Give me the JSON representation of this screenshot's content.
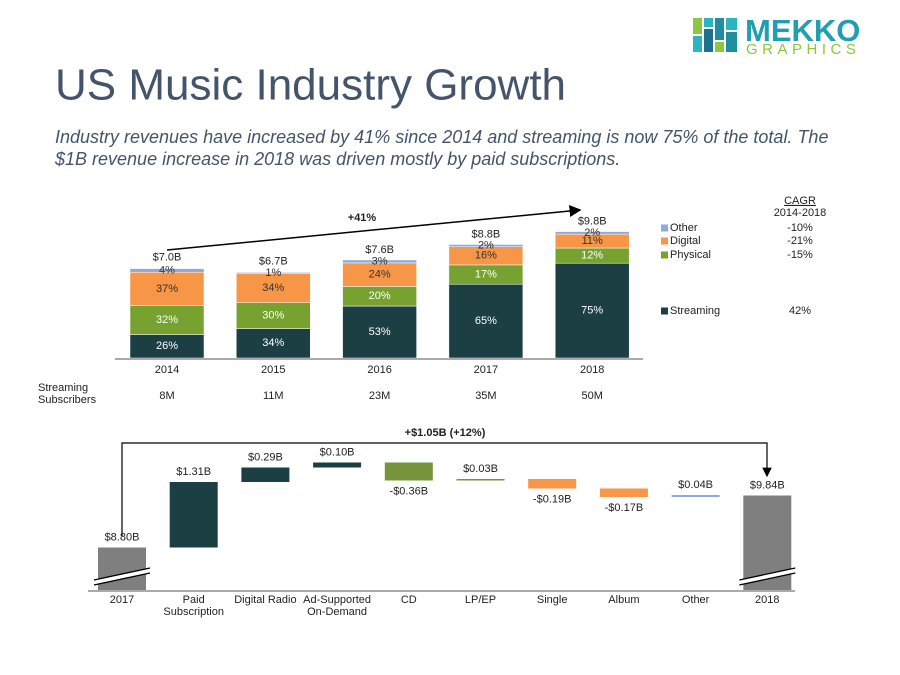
{
  "logo": {
    "brand": "MEKKO",
    "tagline": "GRAPHICS"
  },
  "title": "US Music Industry Growth",
  "subtitle": "Industry revenues have increased by 41% since 2014 and streaming is now 75% of the total. The $1B revenue increase in 2018 was driven mostly by paid subscriptions.",
  "chart_data": [
    {
      "type": "stacked_bar",
      "categories": [
        "2014",
        "2015",
        "2016",
        "2017",
        "2018"
      ],
      "series": [
        {
          "name": "Streaming",
          "color": "#1c3f44",
          "values": [
            26,
            34,
            53,
            65,
            75
          ],
          "value_labels": [
            "26%",
            "34%",
            "53%",
            "65%",
            "75%"
          ],
          "cagr": "42%"
        },
        {
          "name": "Physical",
          "color": "#77a22f",
          "values": [
            32,
            30,
            20,
            17,
            12
          ],
          "value_labels": [
            "32%",
            "30%",
            "20%",
            "17%",
            "12%"
          ],
          "cagr": "-15%"
        },
        {
          "name": "Digital",
          "color": "#f79646",
          "values": [
            37,
            34,
            24,
            16,
            11
          ],
          "value_labels": [
            "37%",
            "34%",
            "24%",
            "16%",
            "11%"
          ],
          "cagr": "-21%"
        },
        {
          "name": "Other",
          "color": "#8ea9db",
          "values": [
            4,
            1,
            3,
            2,
            2
          ],
          "value_labels": [
            "4%",
            "1%",
            "3%",
            "2%",
            "2%"
          ],
          "cagr": "-10%"
        }
      ],
      "totals": {
        "values": [
          7.0,
          6.7,
          7.6,
          8.8,
          9.8
        ],
        "value_labels": [
          "$7.0B",
          "$6.7B",
          "$7.6B",
          "$8.8B",
          "$9.8B"
        ]
      },
      "annotation": "+41%",
      "cagr_title": "CAGR",
      "cagr_period": "2014-2018",
      "subscribers": {
        "label": "Streaming Subscribers",
        "values": [
          "8M",
          "11M",
          "23M",
          "35M",
          "50M"
        ]
      }
    },
    {
      "type": "waterfall",
      "categories": [
        "2017",
        "Paid Subscription",
        "Digital Radio",
        "Ad-Supported On-Demand",
        "CD",
        "LP/EP",
        "Single",
        "Album",
        "Other",
        "2018"
      ],
      "values": [
        8.8,
        1.31,
        0.29,
        0.1,
        -0.36,
        0.03,
        -0.19,
        -0.17,
        0.04,
        9.84
      ],
      "value_labels": [
        "$8.80B",
        "$1.31B",
        "$0.29B",
        "$0.10B",
        "-$0.36B",
        "$0.03B",
        "-$0.19B",
        "-$0.17B",
        "$0.04B",
        "$9.84B"
      ],
      "totals": [
        true,
        false,
        false,
        false,
        false,
        false,
        false,
        false,
        false,
        true
      ],
      "colors": [
        "#7f7f7f",
        "#1c3f44",
        "#1c3f44",
        "#1c3f44",
        "#77933c",
        "#77933c",
        "#f79646",
        "#f79646",
        "#8ea9db",
        "#7f7f7f"
      ],
      "ylim": [
        7.95,
        10.55
      ],
      "annotation": "+$1.05B (+12%)"
    }
  ]
}
